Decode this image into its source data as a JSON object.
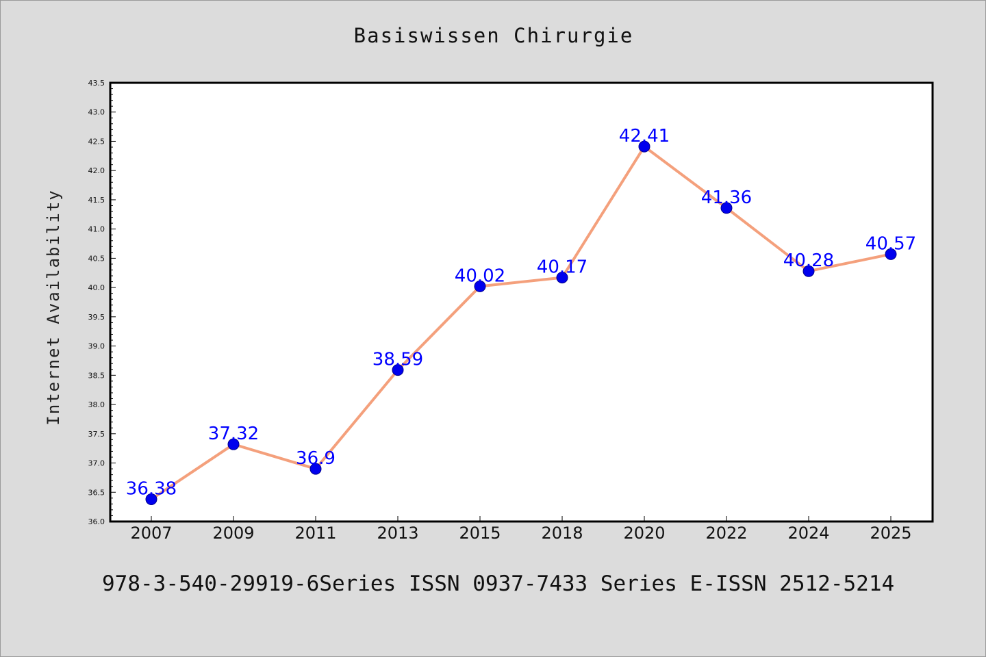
{
  "page": {
    "title": "Basiswissen Chirurgie",
    "footer_text": "978-3-540-29919-6Series ISSN 0937-7433 Series E-ISSN 2512-5214"
  },
  "colors": {
    "background": "#dcdcdc",
    "plot_background": "#ffffff",
    "line": "#f4a07c",
    "marker": "#0000ee",
    "data_label": "#0000ff"
  },
  "chart_data": {
    "type": "line",
    "title": "Basiswissen Chirurgie",
    "xlabel": "",
    "ylabel": "Internet Availability",
    "categories": [
      "2007",
      "2009",
      "2011",
      "2013",
      "2015",
      "2018",
      "2020",
      "2022",
      "2024",
      "2025"
    ],
    "series": [
      {
        "values": [
          36.38,
          37.32,
          36.9,
          38.59,
          40.02,
          40.17,
          42.41,
          41.36,
          40.28,
          40.57
        ],
        "data_labels": [
          "36.38",
          "37.32",
          "36.9",
          "38.59",
          "40.02",
          "40.17",
          "42.41",
          "41.36",
          "40.28",
          "40.57"
        ]
      }
    ],
    "ylim": [
      36.0,
      43.5
    ],
    "yticks": [
      "36.0",
      "36.5",
      "37.0",
      "37.5",
      "38.0",
      "38.5",
      "39.0",
      "39.5",
      "40.0",
      "40.5",
      "41.0",
      "41.5",
      "42.0",
      "42.5",
      "43.0",
      "43.5"
    ],
    "grid": false,
    "legend": "none"
  }
}
